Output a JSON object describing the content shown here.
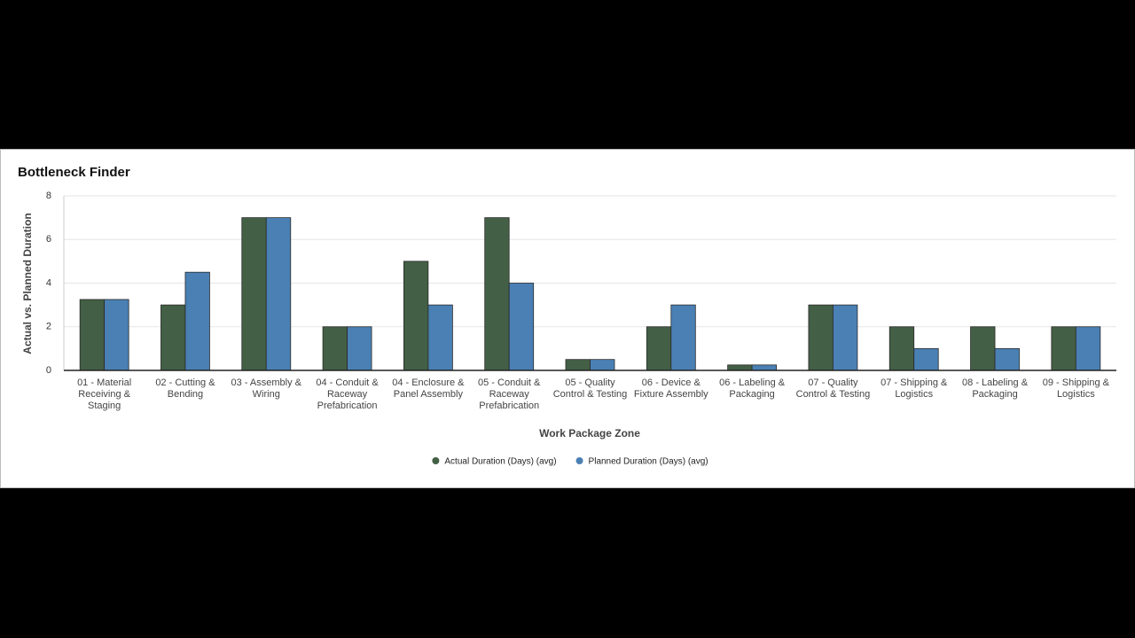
{
  "chart_data": {
    "type": "bar",
    "title": "Bottleneck Finder",
    "x_label": "Work Package Zone",
    "y_label": "Actual vs. Planned Duration",
    "categories": [
      "01 - Material Receiving & Staging",
      "02 - Cutting & Bending",
      "03 - Assembly & Wiring",
      "04 - Conduit & Raceway Prefabrication",
      "04 - Enclosure & Panel Assembly",
      "05 - Conduit & Raceway Prefabrication",
      "05 - Quality Control & Testing",
      "06 - Device & Fixture Assembly",
      "06 - Labeling & Packaging",
      "07 - Quality Control & Testing",
      "07 - Shipping & Logistics",
      "08 - Labeling & Packaging",
      "09 - Shipping & Logistics"
    ],
    "series": [
      {
        "name": "Actual Duration (Days) (avg)",
        "color": "#435f45",
        "values": [
          3.25,
          3,
          7,
          2,
          5,
          7,
          0.5,
          2,
          0.25,
          3,
          2,
          2,
          2
        ]
      },
      {
        "name": "Planned Duration (Days) (avg)",
        "color": "#4a80b4",
        "values": [
          3.25,
          4.5,
          7,
          2,
          3,
          4,
          0.5,
          3,
          0.25,
          3,
          1,
          1,
          2
        ]
      }
    ],
    "ylim": [
      0,
      8
    ],
    "yticks": [
      0,
      2,
      4,
      6,
      8
    ],
    "grid": true
  }
}
